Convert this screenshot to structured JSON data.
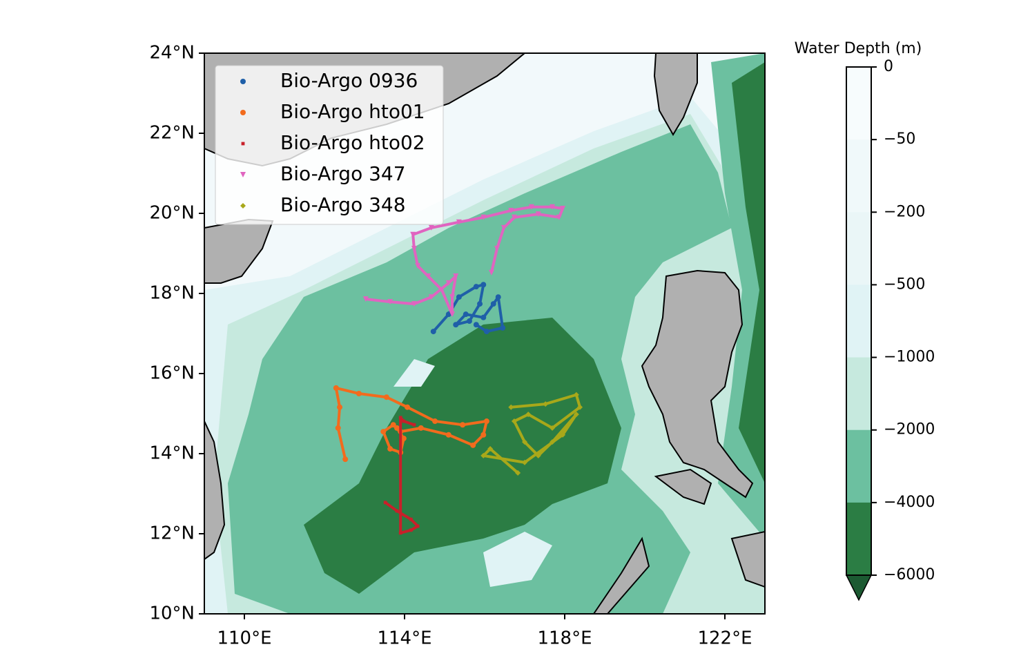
{
  "chart_data": {
    "type": "scatter",
    "xlim": [
      109,
      123
    ],
    "ylim": [
      10,
      24
    ],
    "xticks": [
      {
        "value": 110,
        "label": "110°E"
      },
      {
        "value": 114,
        "label": "114°E"
      },
      {
        "value": 118,
        "label": "118°E"
      },
      {
        "value": 122,
        "label": "122°E"
      }
    ],
    "yticks": [
      {
        "value": 10,
        "label": "10°N"
      },
      {
        "value": 12,
        "label": "12°N"
      },
      {
        "value": 14,
        "label": "14°N"
      },
      {
        "value": 16,
        "label": "16°N"
      },
      {
        "value": 18,
        "label": "18°N"
      },
      {
        "value": 20,
        "label": "20°N"
      },
      {
        "value": 22,
        "label": "22°N"
      },
      {
        "value": 24,
        "label": "24°N"
      }
    ],
    "legend": "upper left",
    "series": [
      {
        "name": "Bio-Argo 0936",
        "color": "#1f5fa8",
        "marker": "o",
        "x": [
          114.72,
          115.1,
          115.36,
          115.79,
          115.97,
          115.88,
          115.62,
          115.28,
          115.53,
          115.97,
          116.22,
          116.34,
          116.45,
          116.05,
          115.79
        ],
        "values": [
          17.05,
          17.48,
          17.91,
          18.17,
          18.22,
          17.74,
          17.31,
          17.22,
          17.48,
          17.4,
          17.74,
          17.91,
          17.14,
          17.05,
          17.22
        ]
      },
      {
        "name": "Bio-Argo hto01",
        "color": "#f26b1d",
        "marker": "o",
        "x": [
          112.52,
          112.34,
          112.38,
          112.29,
          112.86,
          113.55,
          114.07,
          114.76,
          115.45,
          116.05,
          115.97,
          115.71,
          115.1,
          114.41,
          113.9,
          113.72,
          113.47,
          113.64,
          113.9,
          113.98,
          113.81
        ],
        "values": [
          13.86,
          14.64,
          15.16,
          15.64,
          15.5,
          15.41,
          15.16,
          14.81,
          14.72,
          14.81,
          14.47,
          14.21,
          14.47,
          14.64,
          14.55,
          14.72,
          14.55,
          14.12,
          14.03,
          14.38,
          14.64
        ]
      },
      {
        "name": "Bio-Argo hto02",
        "color": "#c8202a",
        "marker": "s",
        "x": [
          113.52,
          113.81,
          114.16,
          114.33,
          114.16,
          113.9,
          113.9,
          113.98,
          114.24
        ],
        "values": [
          12.78,
          12.57,
          12.36,
          12.19,
          12.09,
          12.02,
          14.9,
          14.81,
          14.72
        ]
      },
      {
        "name": "Bio-Argo 347",
        "color": "#e064c0",
        "marker": "v",
        "x": [
          113.03,
          113.64,
          114.24,
          114.67,
          115.1,
          115.28,
          115.19,
          115.19,
          114.93,
          114.59,
          114.33,
          114.24,
          114.21,
          114.67,
          115.36,
          115.97,
          116.66,
          117.17,
          117.69,
          117.95,
          117.86,
          117.34,
          116.74,
          116.48,
          116.31,
          116.17
        ],
        "values": [
          17.86,
          17.79,
          17.74,
          17.91,
          18.26,
          18.43,
          17.91,
          17.48,
          18.09,
          18.43,
          18.69,
          19.12,
          19.47,
          19.64,
          19.78,
          19.9,
          20.07,
          20.16,
          20.16,
          20.12,
          19.9,
          19.98,
          19.9,
          19.64,
          19.12,
          18.52
        ]
      },
      {
        "name": "Bio-Argo 348",
        "color": "#a8a81a",
        "marker": "D",
        "x": [
          116.66,
          117.52,
          118.29,
          118.38,
          117.69,
          117.09,
          116.74,
          117.0,
          117.34,
          117.69,
          118.29,
          117.95,
          117.0,
          115.97,
          116.14,
          116.83
        ],
        "values": [
          15.16,
          15.24,
          15.47,
          15.16,
          14.64,
          14.98,
          14.81,
          14.29,
          13.95,
          14.29,
          14.98,
          14.47,
          13.78,
          13.95,
          14.12,
          13.52
        ]
      }
    ],
    "colorbar": {
      "label": "Water Depth (m)",
      "ticks": [
        {
          "value": 0,
          "label": "0"
        },
        {
          "value": -50,
          "label": "−50"
        },
        {
          "value": -200,
          "label": "−200"
        },
        {
          "value": -500,
          "label": "−500"
        },
        {
          "value": -1000,
          "label": "−1000"
        },
        {
          "value": -2000,
          "label": "−2000"
        },
        {
          "value": -4000,
          "label": "−4000"
        },
        {
          "value": -6000,
          "label": "−6000"
        }
      ],
      "colors": [
        "#f7fcfd",
        "#f0f9fa",
        "#eaf6f7",
        "#e0f3f5",
        "#c6e9de",
        "#6cc0a0",
        "#2b7d44"
      ],
      "extend_color": "#1c5a32"
    }
  }
}
